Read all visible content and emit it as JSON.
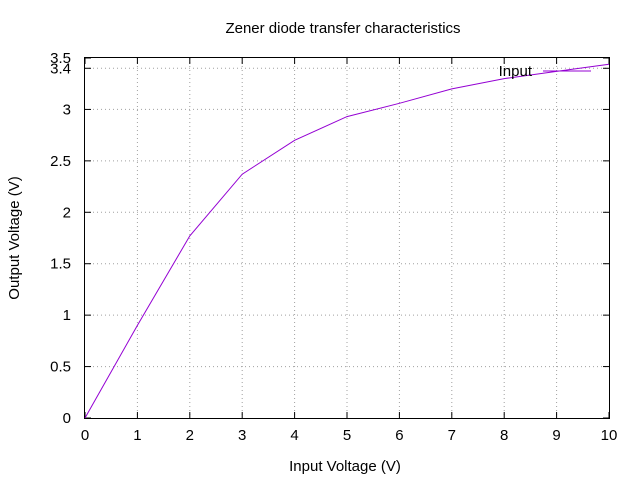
{
  "chart_data": {
    "type": "line",
    "title": "Zener diode transfer characteristics",
    "xlabel": "Input Voltage (V)",
    "ylabel": "Output Voltage (V)",
    "xlim": [
      0,
      10
    ],
    "ylim": [
      0,
      3.5
    ],
    "x_ticks": [
      "0",
      "1",
      "2",
      "3",
      "4",
      "5",
      "6",
      "7",
      "8",
      "9",
      "10"
    ],
    "y_ticks": [
      {
        "value": 0,
        "label": "0"
      },
      {
        "value": 0.5,
        "label": "0.5"
      },
      {
        "value": 1,
        "label": "1"
      },
      {
        "value": 1.5,
        "label": "1.5"
      },
      {
        "value": 2,
        "label": "2"
      },
      {
        "value": 2.5,
        "label": "2.5"
      },
      {
        "value": 3,
        "label": "3"
      },
      {
        "value": 3.4,
        "label": "3.4"
      },
      {
        "value": 3.5,
        "label": "3.5"
      }
    ],
    "grid": true,
    "legend_position": "top-right",
    "series": [
      {
        "name": "Input",
        "color": "#9400d3",
        "x": [
          0,
          1,
          2,
          3,
          4,
          5,
          6,
          7,
          8,
          9,
          10
        ],
        "y": [
          0,
          0.9,
          1.77,
          2.37,
          2.7,
          2.93,
          3.06,
          3.2,
          3.3,
          3.37,
          3.44
        ]
      }
    ]
  }
}
